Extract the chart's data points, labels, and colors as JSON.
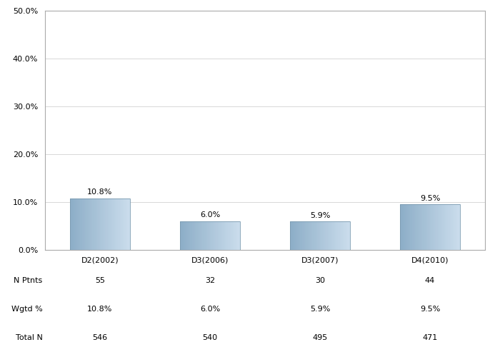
{
  "categories": [
    "D2(2002)",
    "D3(2006)",
    "D3(2007)",
    "D4(2010)"
  ],
  "values": [
    10.8,
    6.0,
    5.9,
    9.5
  ],
  "bar_labels": [
    "10.8%",
    "6.0%",
    "5.9%",
    "9.5%"
  ],
  "n_ptnts": [
    "55",
    "32",
    "30",
    "44"
  ],
  "wgtd_pct": [
    "10.8%",
    "6.0%",
    "5.9%",
    "9.5%"
  ],
  "total_n": [
    "546",
    "540",
    "495",
    "471"
  ],
  "ylim": [
    0,
    50
  ],
  "yticks": [
    0,
    10,
    20,
    30,
    40,
    50
  ],
  "ytick_labels": [
    "0.0%",
    "10.0%",
    "20.0%",
    "30.0%",
    "40.0%",
    "50.0%"
  ],
  "bar_color": "#9db3c8",
  "bar_edge_color": "#7a9ab0",
  "background_color": "#ffffff",
  "grid_color": "#d8d8d8",
  "table_row_labels": [
    "N Ptnts",
    "Wgtd %",
    "Total N"
  ],
  "tick_fontsize": 8,
  "bar_label_fontsize": 8,
  "table_fontsize": 8
}
